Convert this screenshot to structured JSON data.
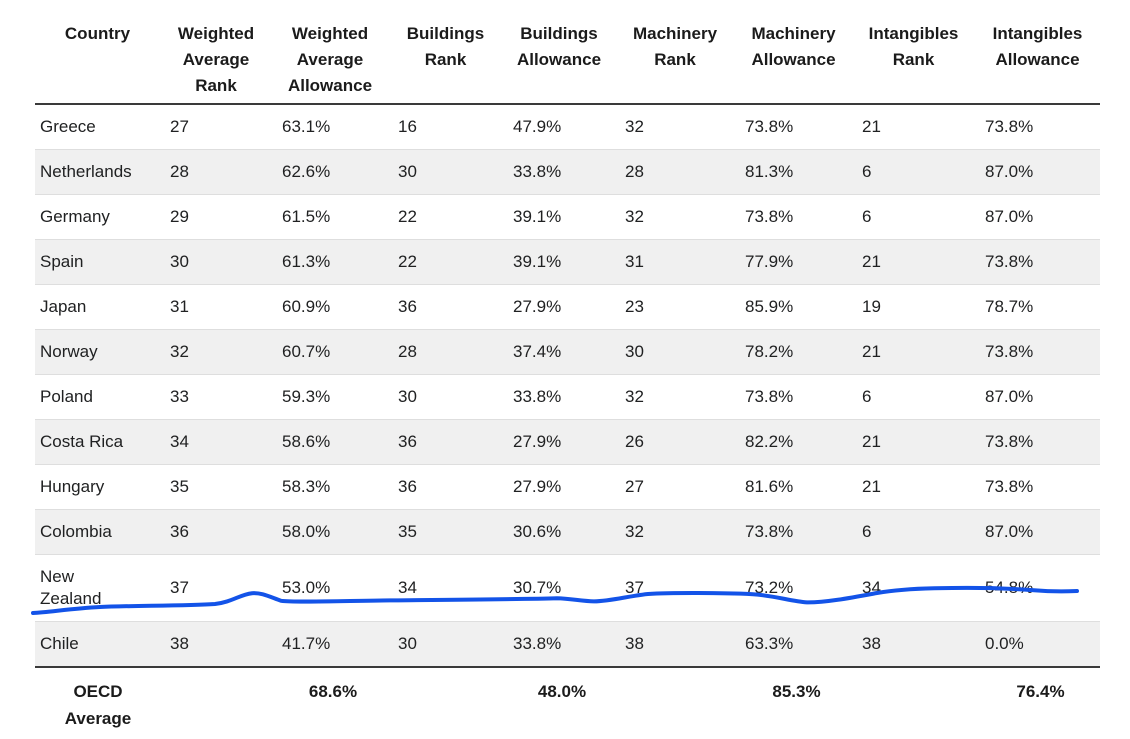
{
  "chart_data": {
    "type": "table",
    "columns": [
      "Country",
      "Weighted Average Rank",
      "Weighted Average Allowance",
      "Buildings Rank",
      "Buildings Allowance",
      "Machinery Rank",
      "Machinery Allowance",
      "Intangibles Rank",
      "Intangibles Allowance"
    ],
    "rows": [
      [
        "Greece",
        "27",
        "63.1%",
        "16",
        "47.9%",
        "32",
        "73.8%",
        "21",
        "73.8%"
      ],
      [
        "Netherlands",
        "28",
        "62.6%",
        "30",
        "33.8%",
        "28",
        "81.3%",
        "6",
        "87.0%"
      ],
      [
        "Germany",
        "29",
        "61.5%",
        "22",
        "39.1%",
        "32",
        "73.8%",
        "6",
        "87.0%"
      ],
      [
        "Spain",
        "30",
        "61.3%",
        "22",
        "39.1%",
        "31",
        "77.9%",
        "21",
        "73.8%"
      ],
      [
        "Japan",
        "31",
        "60.9%",
        "36",
        "27.9%",
        "23",
        "85.9%",
        "19",
        "78.7%"
      ],
      [
        "Norway",
        "32",
        "60.7%",
        "28",
        "37.4%",
        "30",
        "78.2%",
        "21",
        "73.8%"
      ],
      [
        "Poland",
        "33",
        "59.3%",
        "30",
        "33.8%",
        "32",
        "73.8%",
        "6",
        "87.0%"
      ],
      [
        "Costa Rica",
        "34",
        "58.6%",
        "36",
        "27.9%",
        "26",
        "82.2%",
        "21",
        "73.8%"
      ],
      [
        "Hungary",
        "35",
        "58.3%",
        "36",
        "27.9%",
        "27",
        "81.6%",
        "21",
        "73.8%"
      ],
      [
        "Colombia",
        "36",
        "58.0%",
        "35",
        "30.6%",
        "32",
        "73.8%",
        "6",
        "87.0%"
      ],
      [
        "New Zealand",
        "37",
        "53.0%",
        "34",
        "30.7%",
        "37",
        "73.2%",
        "34",
        "54.8%"
      ],
      [
        "Chile",
        "38",
        "41.7%",
        "30",
        "33.8%",
        "38",
        "63.3%",
        "38",
        "0.0%"
      ]
    ],
    "footer_row": [
      "OECD Average",
      "",
      "68.6%",
      "",
      "48.0%",
      "",
      "85.3%",
      "",
      "76.4%"
    ],
    "annotation": {
      "description": "hand-drawn blue line across the New Zealand row",
      "color": "#1353e8"
    },
    "colors": {
      "stripe": "#f0f0f0",
      "rule_dark": "#3a3a3a",
      "rule_light": "#dedede",
      "text": "#202122"
    }
  }
}
